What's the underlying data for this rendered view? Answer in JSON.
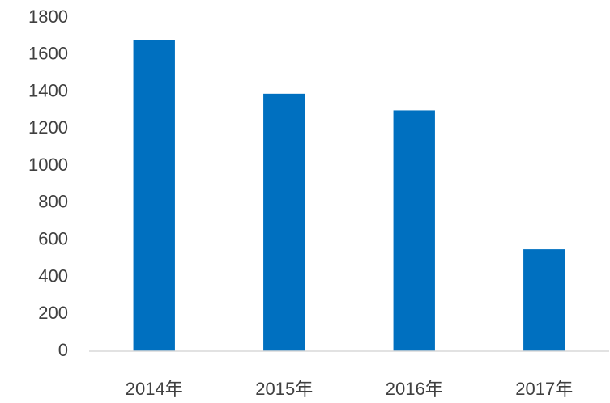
{
  "chart_data": {
    "type": "bar",
    "categories": [
      "2014年",
      "2015年",
      "2016年",
      "2017年"
    ],
    "values": [
      1680,
      1390,
      1300,
      550
    ],
    "color": "#0070c0",
    "ylim": [
      0,
      1800
    ],
    "yticks": [
      0,
      200,
      400,
      600,
      800,
      1000,
      1200,
      1400,
      1600,
      1800
    ],
    "grid": false
  }
}
